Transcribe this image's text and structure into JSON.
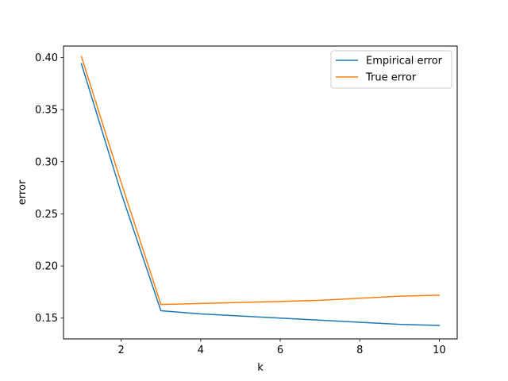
{
  "chart_data": {
    "type": "line",
    "title": "",
    "xlabel": "k",
    "ylabel": "error",
    "xlim": [
      0.55,
      10.45
    ],
    "ylim": [
      0.13,
      0.411
    ],
    "xticks": [
      2,
      4,
      6,
      8,
      10
    ],
    "xtick_labels": [
      "2",
      "4",
      "6",
      "8",
      "10"
    ],
    "yticks": [
      0.15,
      0.2,
      0.25,
      0.3,
      0.35,
      0.4
    ],
    "ytick_labels": [
      "0.15",
      "0.20",
      "0.25",
      "0.30",
      "0.35",
      "0.40"
    ],
    "grid": false,
    "legend_position": "top-right",
    "x": [
      1,
      2,
      3,
      4,
      5,
      6,
      7,
      8,
      9,
      10
    ],
    "series": [
      {
        "name": "Empirical error",
        "color": "#1f77b4",
        "values": [
          0.394,
          0.27,
          0.157,
          0.154,
          0.152,
          0.15,
          0.148,
          0.146,
          0.144,
          0.143
        ]
      },
      {
        "name": "True error",
        "color": "#ff7f0e",
        "values": [
          0.401,
          0.28,
          0.163,
          0.164,
          0.165,
          0.166,
          0.167,
          0.169,
          0.171,
          0.172
        ]
      }
    ]
  }
}
